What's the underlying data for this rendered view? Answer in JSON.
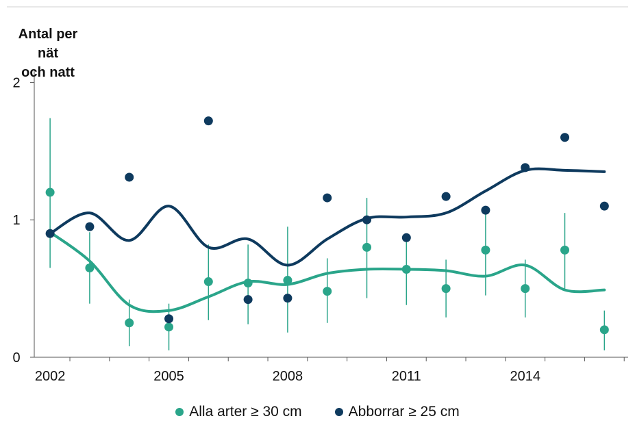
{
  "chart_data": {
    "type": "scatter",
    "title": "",
    "ylabel_line1": "Antal per nät",
    "ylabel_line2": "och natt",
    "xlabel": "",
    "xlim": [
      2001.6,
      2016.6
    ],
    "ylim": [
      0,
      2.5
    ],
    "x_ticks": [
      2002,
      2005,
      2008,
      2011,
      2014
    ],
    "y_ticks": [
      0,
      1,
      2
    ],
    "grid": false,
    "legend_position": "bottom",
    "series": [
      {
        "name": "Alla arter ≥ 30 cm",
        "color": "#2aa58a",
        "points": [
          {
            "x": 2002,
            "y": 1.2,
            "err_low": 0.65,
            "err_high": 1.74
          },
          {
            "x": 2003,
            "y": 0.65,
            "err_low": 0.39,
            "err_high": 0.91
          },
          {
            "x": 2004,
            "y": 0.25,
            "err_low": 0.08,
            "err_high": 0.42
          },
          {
            "x": 2005,
            "y": 0.22,
            "err_low": 0.05,
            "err_high": 0.39
          },
          {
            "x": 2006,
            "y": 0.55,
            "err_low": 0.27,
            "err_high": 0.82
          },
          {
            "x": 2007,
            "y": 0.54,
            "err_low": 0.24,
            "err_high": 0.82
          },
          {
            "x": 2008,
            "y": 0.56,
            "err_low": 0.18,
            "err_high": 0.95
          },
          {
            "x": 2009,
            "y": 0.48,
            "err_low": 0.25,
            "err_high": 0.72
          },
          {
            "x": 2010,
            "y": 0.8,
            "err_low": 0.43,
            "err_high": 1.16
          },
          {
            "x": 2011,
            "y": 0.64,
            "err_low": 0.38,
            "err_high": 0.88
          },
          {
            "x": 2012,
            "y": 0.5,
            "err_low": 0.29,
            "err_high": 0.71
          },
          {
            "x": 2013,
            "y": 0.78,
            "err_low": 0.45,
            "err_high": 1.1
          },
          {
            "x": 2014,
            "y": 0.5,
            "err_low": 0.29,
            "err_high": 0.71
          },
          {
            "x": 2015,
            "y": 0.78,
            "err_low": 0.5,
            "err_high": 1.05
          },
          {
            "x": 2016,
            "y": 0.2,
            "err_low": 0.05,
            "err_high": 0.34
          }
        ],
        "trend": [
          [
            2002,
            0.91
          ],
          [
            2003,
            0.7
          ],
          [
            2004,
            0.38
          ],
          [
            2005,
            0.34
          ],
          [
            2006,
            0.44
          ],
          [
            2007,
            0.55
          ],
          [
            2008,
            0.53
          ],
          [
            2009,
            0.61
          ],
          [
            2010,
            0.64
          ],
          [
            2011,
            0.64
          ],
          [
            2012,
            0.63
          ],
          [
            2013,
            0.59
          ],
          [
            2014,
            0.67
          ],
          [
            2015,
            0.49
          ],
          [
            2016,
            0.49
          ]
        ]
      },
      {
        "name": "Abborrar ≥ 25 cm",
        "color": "#0e3a5e",
        "points": [
          {
            "x": 2002,
            "y": 0.9
          },
          {
            "x": 2003,
            "y": 0.95
          },
          {
            "x": 2004,
            "y": 1.31
          },
          {
            "x": 2005,
            "y": 0.28
          },
          {
            "x": 2006,
            "y": 1.72
          },
          {
            "x": 2007,
            "y": 0.42
          },
          {
            "x": 2008,
            "y": 0.43
          },
          {
            "x": 2009,
            "y": 1.16
          },
          {
            "x": 2010,
            "y": 1.0
          },
          {
            "x": 2011,
            "y": 0.87
          },
          {
            "x": 2012,
            "y": 1.17
          },
          {
            "x": 2013,
            "y": 1.07
          },
          {
            "x": 2014,
            "y": 1.38
          },
          {
            "x": 2015,
            "y": 1.6
          },
          {
            "x": 2016,
            "y": 1.1
          }
        ],
        "trend": [
          [
            2002,
            0.9
          ],
          [
            2003,
            1.05
          ],
          [
            2004,
            0.85
          ],
          [
            2005,
            1.1
          ],
          [
            2006,
            0.8
          ],
          [
            2007,
            0.86
          ],
          [
            2008,
            0.67
          ],
          [
            2009,
            0.86
          ],
          [
            2010,
            1.01
          ],
          [
            2011,
            1.02
          ],
          [
            2012,
            1.05
          ],
          [
            2013,
            1.21
          ],
          [
            2014,
            1.36
          ],
          [
            2015,
            1.36
          ],
          [
            2016,
            1.35
          ]
        ]
      }
    ]
  }
}
